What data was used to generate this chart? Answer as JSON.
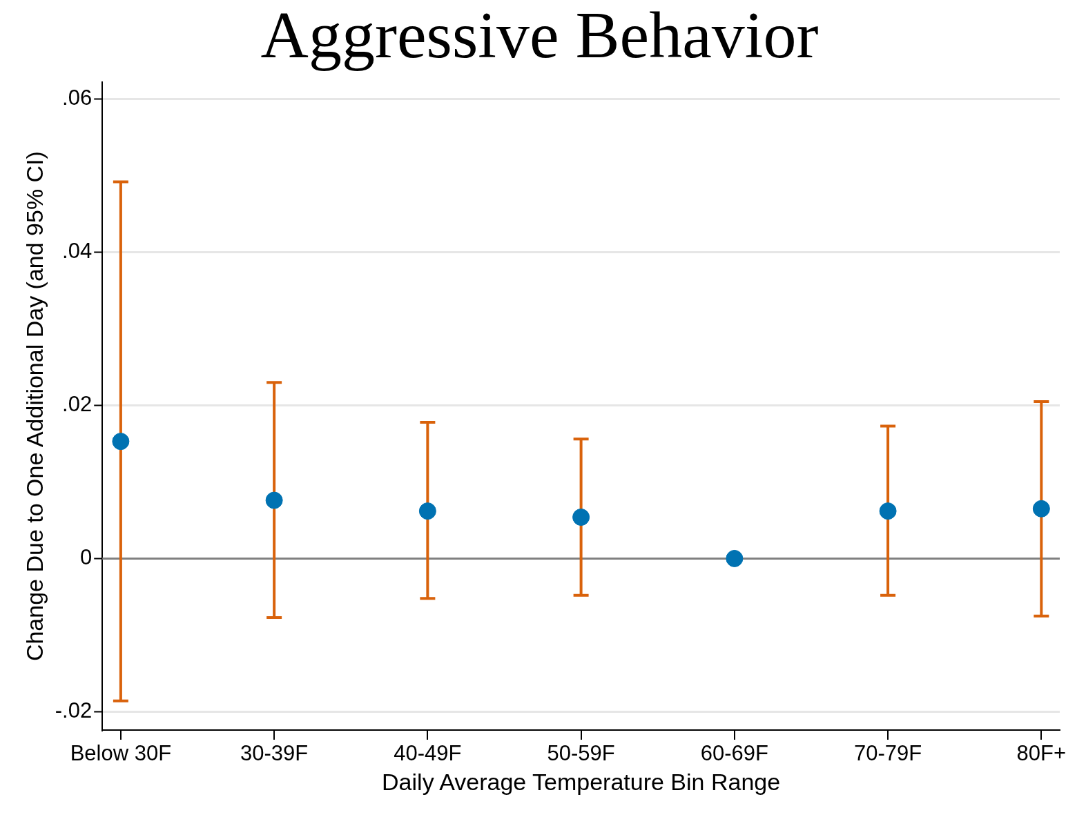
{
  "chart_data": {
    "type": "scatter",
    "title": "Aggressive Behavior",
    "xlabel": "Daily Average Temperature Bin Range",
    "ylabel": "Change Due to One Additional Day (and 95% CI)",
    "categories": [
      "Below 30F",
      "30-39F",
      "40-49F",
      "50-59F",
      "60-69F",
      "70-79F",
      "80F+"
    ],
    "series": [
      {
        "color": "#0072b2",
        "values": [
          0.0153,
          0.0076,
          0.0062,
          0.0054,
          0,
          0.0062,
          0.0065
        ],
        "errors": [
          [
            -0.0186,
            0.0492
          ],
          [
            -0.0077,
            0.023
          ],
          [
            -0.0052,
            0.0178
          ],
          [
            -0.0048,
            0.0156
          ],
          null,
          [
            -0.0048,
            0.0173
          ],
          [
            -0.0075,
            0.0205
          ]
        ]
      }
    ],
    "ylim": [
      -0.0224,
      0.0622
    ],
    "yticks": [
      {
        "value": -0.02,
        "label": "-.02"
      },
      {
        "value": 0,
        "label": "0"
      },
      {
        "value": 0.02,
        "label": ".02"
      },
      {
        "value": 0.04,
        "label": ".04"
      },
      {
        "value": 0.06,
        "label": ".06"
      }
    ],
    "ref_lines": [
      {
        "axis": "y",
        "value": 0,
        "color": "#808080"
      }
    ],
    "grid": "y",
    "marker": "circle",
    "legend": false
  }
}
